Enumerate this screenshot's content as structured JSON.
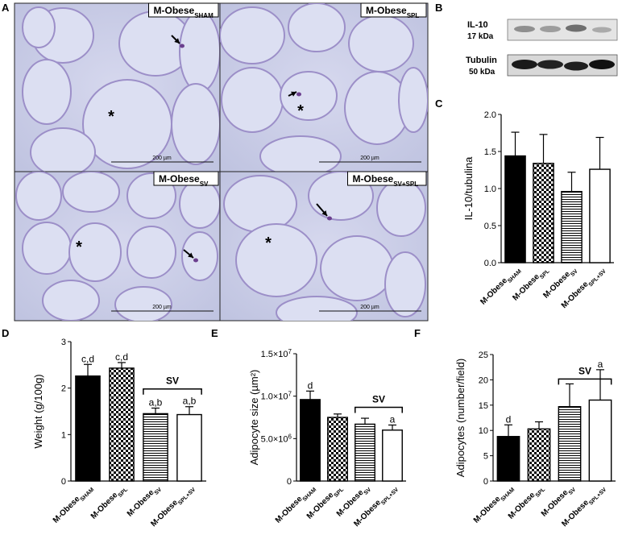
{
  "panels": {
    "A": {
      "letter": "A"
    },
    "B": {
      "letter": "B",
      "bands": [
        {
          "name": "IL-10",
          "size": "17 kDa"
        },
        {
          "name": "Tubulin",
          "size": "50 kDa"
        }
      ]
    },
    "C": {
      "letter": "C"
    },
    "D": {
      "letter": "D"
    },
    "E": {
      "letter": "E"
    },
    "F": {
      "letter": "F"
    }
  },
  "micrographs": [
    {
      "base": "M-Obese",
      "sub": "SHAM",
      "scale": "200 µm",
      "star": "*"
    },
    {
      "base": "M-Obese",
      "sub": "SPL",
      "scale": "200 µm",
      "star": "*"
    },
    {
      "base": "M-Obese",
      "sub": "SV",
      "scale": "200 µm",
      "star": "*"
    },
    {
      "base": "M-Obese",
      "sub": "SV+SPL",
      "scale": "200 µm",
      "star": "*"
    }
  ],
  "colors": {
    "tissue_bg": "#c8cbe4",
    "membrane": "#9c8fc8",
    "nucleus": "#6b3f8e"
  },
  "chart_data": [
    {
      "id": "C",
      "type": "bar",
      "ylabel": "IL-10/tubulina",
      "ylim": [
        0,
        2.0
      ],
      "yticks": [
        "0.0",
        "0.5",
        "1.0",
        "1.5",
        "2.0"
      ],
      "categories": [
        {
          "base": "M-Obese",
          "sub": "SHAM"
        },
        {
          "base": "M-Obese",
          "sub": "SPL"
        },
        {
          "base": "M-Obese",
          "sub": "SV"
        },
        {
          "base": "M-Obese",
          "sub": "SPL+SV"
        }
      ],
      "fills": [
        "black",
        "checker",
        "hlines",
        "white"
      ],
      "values": [
        1.44,
        1.34,
        0.96,
        1.26
      ],
      "errors": [
        0.32,
        0.39,
        0.26,
        0.43
      ],
      "bar_labels": [
        "",
        "",
        "",
        ""
      ]
    },
    {
      "id": "D",
      "type": "bar",
      "ylabel": "Weight (g/100g)",
      "ylim": [
        0,
        3
      ],
      "yticks": [
        "0",
        "1",
        "2",
        "3"
      ],
      "categories": [
        {
          "base": "M-Obese",
          "sub": "SHAM"
        },
        {
          "base": "M-Obese",
          "sub": "SPL"
        },
        {
          "base": "M-Obese",
          "sub": "SV"
        },
        {
          "base": "M-Obese",
          "sub": "SPL+SV"
        }
      ],
      "fills": [
        "black",
        "checker",
        "hlines",
        "white"
      ],
      "values": [
        2.26,
        2.43,
        1.45,
        1.43
      ],
      "errors": [
        0.25,
        0.12,
        0.12,
        0.17
      ],
      "bar_labels": [
        "c,d",
        "c,d",
        "a,b",
        "a,b"
      ],
      "bracket": {
        "label": "SV",
        "from": 2,
        "to": 3
      }
    },
    {
      "id": "E",
      "type": "bar",
      "ylabel": "Adipocyte size  (µm²)",
      "ylim": [
        0,
        15000000
      ],
      "yticks": [
        {
          "m": "0",
          "e": ""
        },
        {
          "m": "5.0×10",
          "e": "6"
        },
        {
          "m": "1.0×10",
          "e": "7"
        },
        {
          "m": "1.5×10",
          "e": "7"
        }
      ],
      "categories": [
        {
          "base": "M-Obese",
          "sub": "SHAM"
        },
        {
          "base": "M-Obese",
          "sub": "SPL"
        },
        {
          "base": "M-Obese",
          "sub": "SV"
        },
        {
          "base": "M-Obese",
          "sub": "SPL+SV"
        }
      ],
      "fills": [
        "black",
        "checker",
        "hlines",
        "white"
      ],
      "values": [
        9600000,
        7500000,
        6700000,
        6000000
      ],
      "errors": [
        1000000,
        400000,
        700000,
        600000
      ],
      "bar_labels": [
        "d",
        "",
        "",
        "a"
      ],
      "bracket": {
        "label": "SV",
        "from": 2,
        "to": 3
      }
    },
    {
      "id": "F",
      "type": "bar",
      "ylabel": "Adipocytes (number/field)",
      "ylim": [
        0,
        25
      ],
      "yticks": [
        "0",
        "5",
        "10",
        "15",
        "20",
        "25"
      ],
      "categories": [
        {
          "base": "M-Obese",
          "sub": "SHAM"
        },
        {
          "base": "M-Obese",
          "sub": "SPL"
        },
        {
          "base": "M-Obese",
          "sub": "SV"
        },
        {
          "base": "M-Obese",
          "sub": "SPL+SV"
        }
      ],
      "fills": [
        "black",
        "checker",
        "hlines",
        "white"
      ],
      "values": [
        8.8,
        10.3,
        14.7,
        16.0
      ],
      "errors": [
        2.3,
        1.4,
        4.5,
        6.0
      ],
      "bar_labels": [
        "d",
        "",
        "",
        "a"
      ],
      "bracket": {
        "label": "SV",
        "from": 2,
        "to": 3
      }
    }
  ]
}
